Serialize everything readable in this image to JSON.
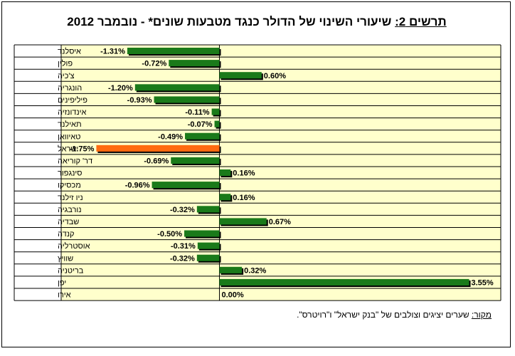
{
  "title": {
    "label": "תרשים 2:",
    "text": " שיעורי השינוי של הדולר כנגד מטבעות שונים* - נובמבר 2012"
  },
  "source": {
    "label": "מקור:",
    "text": " שערים יציגים וצולבים של \"בנק ישראל\" ו\"רויטרס\"."
  },
  "chart_data": {
    "type": "bar",
    "orientation": "horizontal",
    "xlim": [
      -2.25,
      4.0
    ],
    "grid": true,
    "colors": {
      "default": "#1a7a1a",
      "highlight": "#ff6a10",
      "row_fill": "#ffffcc",
      "grid": "#000000"
    },
    "categories": [
      "איסלנד",
      "פולין",
      "צ'כיה",
      "הונגריה",
      "פיליפינים",
      "אינדונזיה",
      "תאילנד",
      "טאיוואן",
      "ישראל",
      "דר' קוריאה",
      "סינגפור",
      "מכסיקו",
      "ניו זילנד",
      "נורבגיה",
      "שבדיה",
      "קנדה",
      "אוסטרליה",
      "שוויץ",
      "בריטניה",
      "יפן",
      "אירו"
    ],
    "values": [
      -1.31,
      -0.72,
      0.6,
      -1.2,
      -0.93,
      -0.11,
      -0.07,
      -0.49,
      -1.75,
      -0.69,
      0.16,
      -0.96,
      0.16,
      -0.32,
      0.67,
      -0.5,
      -0.31,
      -0.32,
      0.32,
      3.55,
      0.0
    ],
    "value_labels": [
      "-1.31%",
      "-0.72%",
      "0.60%",
      "-1.20%",
      "-0.93%",
      "-0.11%",
      "-0.07%",
      "-0.49%",
      "-1.75%",
      "-0.69%",
      "0.16%",
      "-0.96%",
      "0.16%",
      "-0.32%",
      "0.67%",
      "-0.50%",
      "-0.31%",
      "-0.32%",
      "0.32%",
      "3.55%",
      "0.00%"
    ],
    "highlight": "ישראל"
  }
}
